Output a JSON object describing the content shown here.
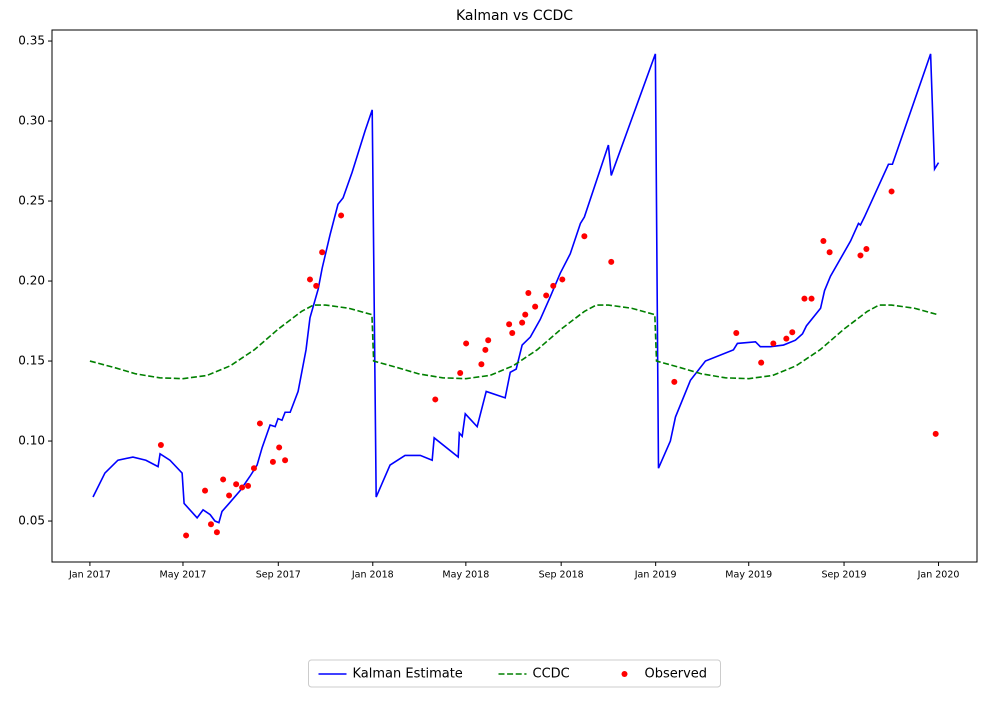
{
  "chart_data": {
    "type": "line",
    "title": "Kalman vs CCDC",
    "xlim": [
      2016.866,
      2020.136
    ],
    "ylim": [
      0.0244,
      0.3569
    ],
    "xticks": [
      {
        "value": 2017.0,
        "label": "Jan 2017"
      },
      {
        "value": 2017.329,
        "label": "May 2017"
      },
      {
        "value": 2017.666,
        "label": "Sep 2017"
      },
      {
        "value": 2018.0,
        "label": "Jan 2018"
      },
      {
        "value": 2018.329,
        "label": "May 2018"
      },
      {
        "value": 2018.666,
        "label": "Sep 2018"
      },
      {
        "value": 2019.0,
        "label": "Jan 2019"
      },
      {
        "value": 2019.329,
        "label": "May 2019"
      },
      {
        "value": 2019.666,
        "label": "Sep 2019"
      },
      {
        "value": 2020.0,
        "label": "Jan 2020"
      }
    ],
    "yticks": [
      0.05,
      {
        "value": 0.1,
        "label": "0.10"
      },
      0.15,
      {
        "value": 0.2,
        "label": "0.20"
      },
      0.25,
      {
        "value": 0.3,
        "label": "0.30"
      },
      0.35
    ],
    "legend": "lower center",
    "series": [
      {
        "name": "Kalman Estimate",
        "type": "line",
        "color": "#0000ff",
        "dashed": false,
        "x": [
          2017.011,
          2017.053,
          2017.099,
          2017.152,
          2017.198,
          2017.241,
          2017.248,
          2017.283,
          2017.326,
          2017.333,
          2017.379,
          2017.4,
          2017.425,
          2017.442,
          2017.456,
          2017.467,
          2017.492,
          2017.531,
          2017.566,
          2017.591,
          2017.609,
          2017.637,
          2017.655,
          2017.665,
          2017.679,
          2017.69,
          2017.708,
          2017.736,
          2017.764,
          2017.778,
          2017.807,
          2017.821,
          2017.849,
          2017.877,
          2017.895,
          2017.927,
          2017.973,
          2017.998,
          2018.012,
          2018.061,
          2018.114,
          2018.168,
          2018.21,
          2018.217,
          2018.302,
          2018.306,
          2018.316,
          2018.327,
          2018.369,
          2018.401,
          2018.468,
          2018.486,
          2018.507,
          2018.528,
          2018.557,
          2018.592,
          2018.627,
          2018.663,
          2018.698,
          2018.734,
          2018.748,
          2018.833,
          2018.843,
          2018.999,
          2019.01,
          2019.052,
          2019.07,
          2019.123,
          2019.176,
          2019.275,
          2019.289,
          2019.353,
          2019.37,
          2019.406,
          2019.452,
          2019.494,
          2019.519,
          2019.533,
          2019.583,
          2019.597,
          2019.618,
          2019.689,
          2019.717,
          2019.724,
          2019.738,
          2019.823,
          2019.837,
          2019.972,
          2019.986,
          2020.0
        ],
        "values": [
          0.065,
          0.08,
          0.088,
          0.09,
          0.088,
          0.084,
          0.092,
          0.088,
          0.08,
          0.061,
          0.052,
          0.057,
          0.054,
          0.05,
          0.049,
          0.056,
          0.061,
          0.069,
          0.078,
          0.085,
          0.096,
          0.11,
          0.109,
          0.114,
          0.113,
          0.118,
          0.118,
          0.131,
          0.157,
          0.177,
          0.195,
          0.208,
          0.229,
          0.248,
          0.252,
          0.268,
          0.294,
          0.307,
          0.065,
          0.085,
          0.091,
          0.091,
          0.088,
          0.102,
          0.09,
          0.105,
          0.103,
          0.117,
          0.109,
          0.131,
          0.127,
          0.143,
          0.145,
          0.16,
          0.165,
          0.176,
          0.19,
          0.205,
          0.217,
          0.236,
          0.24,
          0.285,
          0.266,
          0.342,
          0.083,
          0.1,
          0.115,
          0.138,
          0.15,
          0.157,
          0.161,
          0.162,
          0.159,
          0.159,
          0.16,
          0.163,
          0.167,
          0.172,
          0.183,
          0.194,
          0.203,
          0.225,
          0.236,
          0.235,
          0.24,
          0.273,
          0.273,
          0.342,
          0.27,
          0.274
        ]
      },
      {
        "name": "CCDC",
        "type": "line",
        "color": "#008000",
        "dashed": true,
        "x": [
          2017.0,
          2017.085,
          2017.162,
          2017.247,
          2017.329,
          2017.414,
          2017.496,
          2017.581,
          2017.666,
          2017.748,
          2017.79,
          2017.833,
          2017.915,
          2017.997,
          2018.003,
          2018.085,
          2018.162,
          2018.247,
          2018.329,
          2018.414,
          2018.496,
          2018.581,
          2018.666,
          2018.748,
          2018.79,
          2018.833,
          2018.915,
          2018.997,
          2019.003,
          2019.085,
          2019.162,
          2019.247,
          2019.329,
          2019.414,
          2019.496,
          2019.581,
          2019.666,
          2019.748,
          2019.79,
          2019.833,
          2019.915,
          2019.997
        ],
        "values": [
          0.15,
          0.146,
          0.142,
          0.1395,
          0.139,
          0.141,
          0.147,
          0.157,
          0.17,
          0.181,
          0.185,
          0.185,
          0.183,
          0.179,
          0.15,
          0.146,
          0.142,
          0.1395,
          0.139,
          0.141,
          0.147,
          0.157,
          0.17,
          0.181,
          0.185,
          0.185,
          0.183,
          0.179,
          0.15,
          0.146,
          0.142,
          0.1395,
          0.139,
          0.141,
          0.147,
          0.157,
          0.17,
          0.181,
          0.185,
          0.185,
          0.183,
          0.179
        ]
      },
      {
        "name": "Observed",
        "type": "scatter",
        "color": "#ff0000",
        "x": [
          2017.251,
          2017.34,
          2017.407,
          2017.428,
          2017.449,
          2017.471,
          2017.492,
          2017.517,
          2017.538,
          2017.559,
          2017.58,
          2017.601,
          2017.647,
          2017.669,
          2017.69,
          2017.778,
          2017.8,
          2017.821,
          2017.888,
          2018.221,
          2018.309,
          2018.33,
          2018.384,
          2018.398,
          2018.408,
          2018.482,
          2018.493,
          2018.528,
          2018.539,
          2018.55,
          2018.574,
          2018.613,
          2018.638,
          2018.67,
          2018.748,
          2018.843,
          2019.066,
          2019.285,
          2019.373,
          2019.416,
          2019.462,
          2019.483,
          2019.526,
          2019.551,
          2019.593,
          2019.615,
          2019.724,
          2019.745,
          2019.834,
          2019.99
        ],
        "values": [
          0.0975,
          0.041,
          0.069,
          0.048,
          0.043,
          0.076,
          0.066,
          0.073,
          0.071,
          0.072,
          0.083,
          0.111,
          0.087,
          0.096,
          0.088,
          0.201,
          0.197,
          0.218,
          0.241,
          0.126,
          0.1425,
          0.161,
          0.148,
          0.157,
          0.163,
          0.173,
          0.1675,
          0.174,
          0.179,
          0.1925,
          0.184,
          0.191,
          0.197,
          0.201,
          0.228,
          0.212,
          0.137,
          0.1675,
          0.149,
          0.161,
          0.164,
          0.168,
          0.189,
          0.189,
          0.225,
          0.218,
          0.216,
          0.22,
          0.256,
          0.1045
        ]
      }
    ]
  }
}
